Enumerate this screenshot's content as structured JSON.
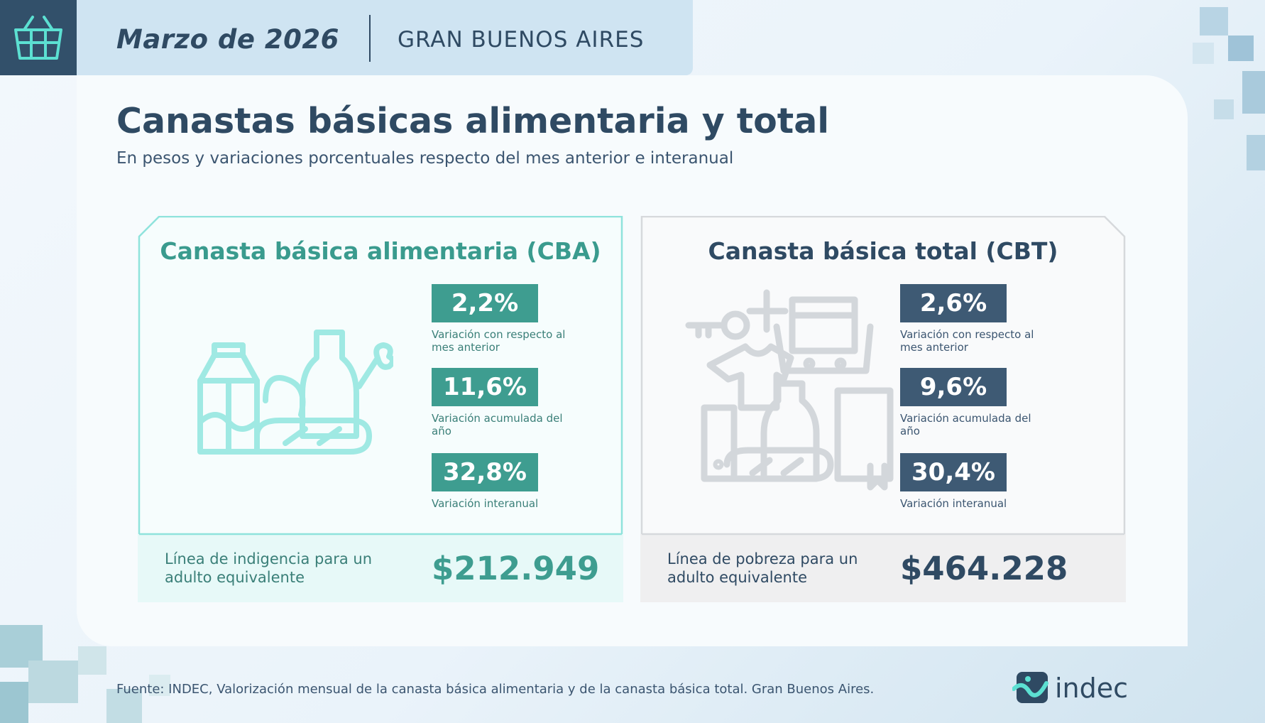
{
  "header": {
    "date": "Marzo de 2026",
    "region": "GRAN BUENOS AIRES"
  },
  "title": "Canastas básicas alimentaria y total",
  "subtitle": "En pesos y variaciones porcentuales respecto del mes anterior e interanual",
  "cba": {
    "title": "Canasta básica alimentaria (CBA)",
    "stats": [
      {
        "value": "2,2%",
        "label": "Variación con respecto al mes anterior"
      },
      {
        "value": "11,6%",
        "label": "Variación acumulada del año"
      },
      {
        "value": "32,8%",
        "label": "Variación interanual"
      }
    ],
    "line_label": "Línea de indigencia para un adulto equivalente",
    "line_value": "$212.949"
  },
  "cbt": {
    "title": "Canasta básica total (CBT)",
    "stats": [
      {
        "value": "2,6%",
        "label": "Variación con respecto al mes anterior"
      },
      {
        "value": "9,6%",
        "label": "Variación acumulada del año"
      },
      {
        "value": "30,4%",
        "label": "Variación interanual"
      }
    ],
    "line_label": "Línea de pobreza para un adulto equivalente",
    "line_value": "$464.228"
  },
  "source": "Fuente: INDEC, Valorización mensual de la canasta básica alimentaria y de la canasta básica total. Gran Buenos Aires.",
  "logo_text": "indec",
  "colors": {
    "teal": "#3e9d90",
    "navy": "#2f4a63",
    "teal_light": "#a6ece6",
    "gray_light": "#d5d9dd"
  },
  "icons": {
    "header": "basket-icon",
    "cba": "food-groceries-icon",
    "cbt": "goods-services-icon",
    "logo": "indec-logo-icon"
  }
}
